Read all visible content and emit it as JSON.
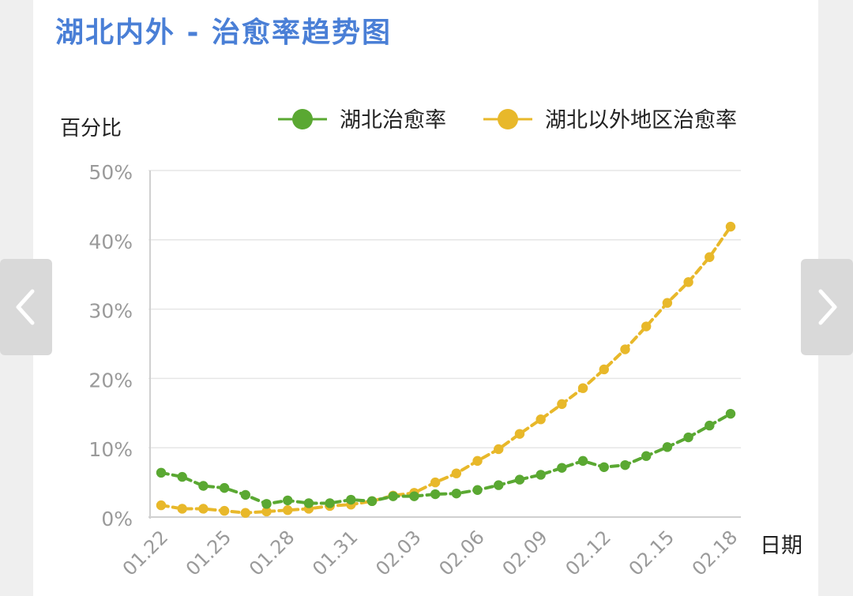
{
  "title": "湖北内外 - 治愈率趋势图",
  "nav": {
    "prev_icon": "chevron-left-icon",
    "next_icon": "chevron-right-icon"
  },
  "chart_data": {
    "type": "line",
    "ylabel": "百分比",
    "xlabel": "日期",
    "ylim": [
      0,
      50
    ],
    "yticks": [
      "0%",
      "10%",
      "20%",
      "30%",
      "40%",
      "50%"
    ],
    "ytick_values": [
      0,
      10,
      20,
      30,
      40,
      50
    ],
    "grid": true,
    "legend_position": "top-right",
    "categories": [
      "01.22",
      "01.23",
      "01.24",
      "01.25",
      "01.26",
      "01.27",
      "01.28",
      "01.29",
      "01.30",
      "01.31",
      "02.01",
      "02.02",
      "02.03",
      "02.04",
      "02.05",
      "02.06",
      "02.07",
      "02.08",
      "02.09",
      "02.10",
      "02.11",
      "02.12",
      "02.13",
      "02.14",
      "02.15",
      "02.16",
      "02.17",
      "02.18"
    ],
    "xtick_labels": [
      "01.22",
      "01.25",
      "01.28",
      "01.31",
      "02.03",
      "02.06",
      "02.09",
      "02.12",
      "02.15",
      "02.18"
    ],
    "xtick_indices": [
      0,
      3,
      6,
      9,
      12,
      15,
      18,
      21,
      24,
      27
    ],
    "series": [
      {
        "name": "湖北治愈率",
        "color": "#5aa832",
        "values": [
          6.4,
          5.8,
          4.5,
          4.2,
          3.2,
          1.9,
          2.4,
          2.0,
          2.0,
          2.5,
          2.3,
          3.0,
          3.0,
          3.3,
          3.4,
          3.9,
          4.6,
          5.4,
          6.1,
          7.1,
          8.1,
          7.2,
          7.5,
          8.8,
          10.1,
          11.5,
          13.2,
          14.9
        ]
      },
      {
        "name": "湖北以外地区治愈率",
        "color": "#e8b82a",
        "values": [
          1.7,
          1.2,
          1.2,
          0.9,
          0.6,
          0.8,
          1.0,
          1.2,
          1.6,
          1.8,
          2.3,
          3.1,
          3.5,
          5.0,
          6.3,
          8.1,
          9.8,
          12.0,
          14.1,
          16.3,
          18.6,
          21.3,
          24.2,
          27.5,
          30.9,
          33.9,
          37.5,
          41.9
        ]
      }
    ]
  }
}
